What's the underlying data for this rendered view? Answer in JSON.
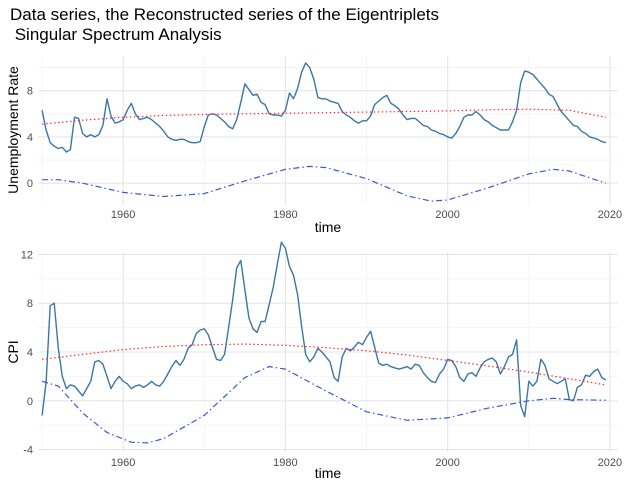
{
  "title": "Data series, the Reconstructed series of the Eigentriplets\n Singular Spectrum Analysis",
  "colors": {
    "data": "#3b76a8",
    "trend": "#ff2a2a",
    "oscillation": "#3a57d6",
    "grid_major": "#e6e6e6",
    "grid_minor": "#f3f3f3"
  },
  "chart_data": [
    {
      "type": "line",
      "xlabel": "time",
      "ylabel": "Unemployment Rate",
      "xlim": [
        1949.5,
        2021
      ],
      "ylim": [
        -1.8,
        11.0
      ],
      "x_ticks": [
        1960,
        1980,
        2000,
        2020
      ],
      "y_ticks": [
        0,
        4,
        8
      ],
      "grid": true,
      "series": [
        {
          "style": "solid",
          "x": [
            1950,
            1950.5,
            1951,
            1951.5,
            1952,
            1952.5,
            1953,
            1953.5,
            1954,
            1954.5,
            1955,
            1955.5,
            1956,
            1956.5,
            1957,
            1957.5,
            1958,
            1958.5,
            1959,
            1959.5,
            1960,
            1960.5,
            1961,
            1961.5,
            1962,
            1962.5,
            1963,
            1963.5,
            1964,
            1964.5,
            1965,
            1965.5,
            1966,
            1966.5,
            1967,
            1967.5,
            1968,
            1968.5,
            1969,
            1969.5,
            1970,
            1970.5,
            1971,
            1971.5,
            1972,
            1972.5,
            1973,
            1973.5,
            1974,
            1974.5,
            1975,
            1975.5,
            1976,
            1976.5,
            1977,
            1977.5,
            1978,
            1978.5,
            1979,
            1979.5,
            1980,
            1980.5,
            1981,
            1981.5,
            1982,
            1982.5,
            1983,
            1983.5,
            1984,
            1984.5,
            1985,
            1985.5,
            1986,
            1986.5,
            1987,
            1987.5,
            1988,
            1988.5,
            1989,
            1989.5,
            1990,
            1990.5,
            1991,
            1991.5,
            1992,
            1992.5,
            1993,
            1993.5,
            1994,
            1994.5,
            1995,
            1995.5,
            1996,
            1996.5,
            1997,
            1997.5,
            1998,
            1998.5,
            1999,
            1999.5,
            2000,
            2000.5,
            2001,
            2001.5,
            2002,
            2002.5,
            2003,
            2003.5,
            2004,
            2004.5,
            2005,
            2005.5,
            2006,
            2006.5,
            2007,
            2007.5,
            2008,
            2008.5,
            2009,
            2009.5,
            2010,
            2010.5,
            2011,
            2011.5,
            2012,
            2012.5,
            2013,
            2013.5,
            2014,
            2014.5,
            2015,
            2015.5,
            2016,
            2016.5,
            2017,
            2017.5,
            2018,
            2018.5,
            2019,
            2019.5
          ],
          "y": [
            6.3,
            4.6,
            3.5,
            3.2,
            3.0,
            3.1,
            2.7,
            2.9,
            5.7,
            5.6,
            4.3,
            4.0,
            4.2,
            4.0,
            4.2,
            5.0,
            7.3,
            5.8,
            5.2,
            5.3,
            5.5,
            6.3,
            6.9,
            6.0,
            5.5,
            5.6,
            5.7,
            5.5,
            5.2,
            4.9,
            4.5,
            4.0,
            3.8,
            3.7,
            3.8,
            3.8,
            3.6,
            3.5,
            3.5,
            3.6,
            4.9,
            5.9,
            6.0,
            5.9,
            5.6,
            5.3,
            4.9,
            4.7,
            5.5,
            7.0,
            8.6,
            8.1,
            7.6,
            7.7,
            7.0,
            6.8,
            6.0,
            5.9,
            5.9,
            5.8,
            6.3,
            7.8,
            7.3,
            8.2,
            9.6,
            10.4,
            10.0,
            9.0,
            7.4,
            7.3,
            7.3,
            7.1,
            7.0,
            6.9,
            6.2,
            5.9,
            5.7,
            5.4,
            5.2,
            5.4,
            5.4,
            5.8,
            6.8,
            7.1,
            7.4,
            7.6,
            6.9,
            6.7,
            6.4,
            5.9,
            5.5,
            5.6,
            5.6,
            5.3,
            5.0,
            4.9,
            4.6,
            4.5,
            4.3,
            4.2,
            4.0,
            3.9,
            4.3,
            4.9,
            5.7,
            5.9,
            5.9,
            6.2,
            5.9,
            5.5,
            5.3,
            5.0,
            4.8,
            4.6,
            4.6,
            4.6,
            5.3,
            6.3,
            8.7,
            9.7,
            9.6,
            9.4,
            9.0,
            8.6,
            8.2,
            7.7,
            7.5,
            6.8,
            6.2,
            5.8,
            5.4,
            5.0,
            4.9,
            4.5,
            4.3,
            4.0,
            3.9,
            3.8,
            3.6,
            3.5
          ]
        },
        {
          "style": "dotted",
          "x": [
            1950,
            1955,
            1960,
            1965,
            1970,
            1975,
            1980,
            1985,
            1990,
            1995,
            2000,
            2005,
            2010,
            2015,
            2019.5
          ],
          "y": [
            5.1,
            5.45,
            5.7,
            5.85,
            5.95,
            6.0,
            6.05,
            6.1,
            6.15,
            6.2,
            6.25,
            6.35,
            6.4,
            6.3,
            5.7
          ]
        },
        {
          "style": "dashdot",
          "x": [
            1950,
            1952,
            1955,
            1960,
            1965,
            1970,
            1975,
            1980,
            1983,
            1985,
            1990,
            1995,
            1998,
            2000,
            2005,
            2010,
            2013,
            2015,
            2019.5
          ],
          "y": [
            0.3,
            0.3,
            0.0,
            -0.8,
            -1.15,
            -0.9,
            0.2,
            1.2,
            1.45,
            1.35,
            0.4,
            -1.1,
            -1.55,
            -1.45,
            -0.4,
            0.8,
            1.2,
            1.05,
            0.0
          ]
        }
      ]
    },
    {
      "type": "line",
      "xlabel": "time",
      "ylabel": "CPI",
      "xlim": [
        1949.5,
        2021
      ],
      "ylim": [
        -4.2,
        12.2
      ],
      "x_ticks": [
        1960,
        1980,
        2000,
        2020
      ],
      "y_ticks": [
        -4,
        0,
        4,
        8,
        12
      ],
      "grid": true,
      "series": [
        {
          "style": "solid",
          "x": [
            1950,
            1950.5,
            1951,
            1951.5,
            1952,
            1952.5,
            1953,
            1953.5,
            1954,
            1954.5,
            1955,
            1955.5,
            1956,
            1956.5,
            1957,
            1957.5,
            1958,
            1958.5,
            1959,
            1959.5,
            1960,
            1960.5,
            1961,
            1961.5,
            1962,
            1962.5,
            1963,
            1963.5,
            1964,
            1964.5,
            1965,
            1965.5,
            1966,
            1966.5,
            1967,
            1967.5,
            1968,
            1968.5,
            1969,
            1969.5,
            1970,
            1970.5,
            1971,
            1971.5,
            1972,
            1972.5,
            1973,
            1973.5,
            1974,
            1974.5,
            1975,
            1975.5,
            1976,
            1976.5,
            1977,
            1977.5,
            1978,
            1978.5,
            1979,
            1979.5,
            1980,
            1980.5,
            1981,
            1981.5,
            1982,
            1982.5,
            1983,
            1983.5,
            1984,
            1984.5,
            1985,
            1985.5,
            1986,
            1986.5,
            1987,
            1987.5,
            1988,
            1988.5,
            1989,
            1989.5,
            1990,
            1990.5,
            1991,
            1991.5,
            1992,
            1992.5,
            1993,
            1993.5,
            1994,
            1994.5,
            1995,
            1995.5,
            1996,
            1996.5,
            1997,
            1997.5,
            1998,
            1998.5,
            1999,
            1999.5,
            2000,
            2000.5,
            2001,
            2001.5,
            2002,
            2002.5,
            2003,
            2003.5,
            2004,
            2004.5,
            2005,
            2005.5,
            2006,
            2006.5,
            2007,
            2007.5,
            2008,
            2008.5,
            2009,
            2009.5,
            2010,
            2010.5,
            2011,
            2011.5,
            2012,
            2012.5,
            2013,
            2013.5,
            2014,
            2014.5,
            2015,
            2015.5,
            2016,
            2016.5,
            2017,
            2017.5,
            2018,
            2018.5,
            2019,
            2019.5
          ],
          "y": [
            -1.2,
            1.5,
            7.8,
            8.0,
            4.3,
            2.0,
            1.0,
            1.3,
            1.2,
            0.8,
            0.4,
            1.0,
            1.6,
            3.2,
            3.3,
            3.0,
            2.0,
            1.0,
            1.6,
            2.0,
            1.6,
            1.4,
            1.0,
            1.2,
            1.3,
            1.1,
            1.3,
            1.6,
            1.3,
            1.2,
            1.6,
            2.2,
            2.8,
            3.3,
            2.9,
            3.4,
            4.3,
            4.6,
            5.5,
            5.8,
            5.9,
            5.4,
            4.4,
            3.4,
            3.3,
            3.8,
            6.0,
            8.3,
            10.9,
            11.5,
            9.1,
            6.8,
            5.9,
            5.6,
            6.5,
            6.5,
            7.9,
            9.3,
            11.2,
            13.0,
            12.5,
            11.0,
            10.3,
            8.7,
            6.1,
            3.8,
            3.2,
            3.6,
            4.3,
            4.0,
            3.6,
            3.2,
            1.9,
            1.6,
            3.6,
            4.3,
            4.1,
            4.4,
            4.8,
            4.6,
            5.2,
            5.7,
            4.4,
            3.1,
            2.9,
            3.0,
            2.8,
            2.7,
            2.6,
            2.7,
            2.8,
            2.6,
            3.0,
            2.9,
            2.3,
            1.9,
            1.6,
            1.5,
            2.2,
            2.6,
            3.4,
            3.3,
            2.8,
            1.9,
            1.6,
            2.2,
            2.3,
            2.0,
            2.7,
            3.2,
            3.4,
            3.5,
            3.2,
            2.2,
            2.8,
            3.6,
            3.8,
            5.0,
            -0.4,
            -1.3,
            1.6,
            1.2,
            1.6,
            3.4,
            2.9,
            1.8,
            1.6,
            1.4,
            1.6,
            1.8,
            0.1,
            0.0,
            1.1,
            1.3,
            2.1,
            2.0,
            2.4,
            2.6,
            1.9,
            1.7
          ]
        },
        {
          "style": "dotted",
          "x": [
            1950,
            1955,
            1960,
            1965,
            1970,
            1975,
            1980,
            1985,
            1990,
            1995,
            2000,
            2005,
            2010,
            2015,
            2019.5
          ],
          "y": [
            3.4,
            3.8,
            4.2,
            4.45,
            4.6,
            4.65,
            4.55,
            4.35,
            4.1,
            3.75,
            3.3,
            2.85,
            2.35,
            1.8,
            1.3
          ]
        },
        {
          "style": "dashdot",
          "x": [
            1950,
            1952,
            1955,
            1958,
            1961,
            1963,
            1965,
            1970,
            1975,
            1978,
            1980,
            1985,
            1990,
            1995,
            2000,
            2005,
            2010,
            2013,
            2015,
            2019.5
          ],
          "y": [
            1.6,
            1.2,
            -1.0,
            -2.6,
            -3.4,
            -3.45,
            -3.1,
            -1.2,
            1.9,
            2.8,
            2.6,
            0.8,
            -0.9,
            -1.6,
            -1.4,
            -0.6,
            0.0,
            0.2,
            0.1,
            0.05
          ]
        }
      ]
    }
  ]
}
